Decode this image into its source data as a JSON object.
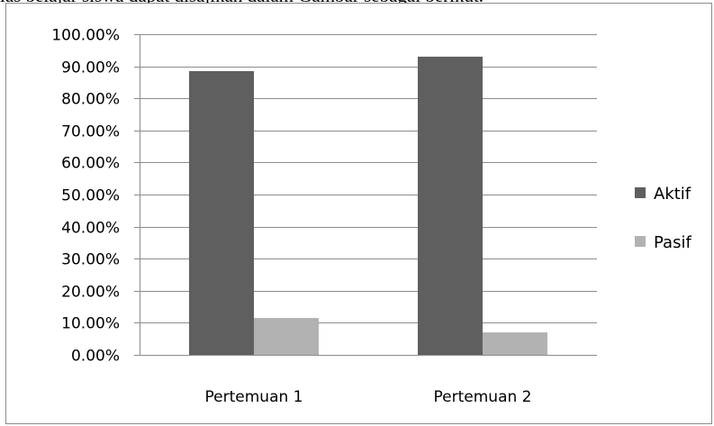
{
  "caption_fragment": "las belajar siswa dapat disajikan dalam Gambar sebagai berikut.",
  "chart_data": {
    "type": "bar",
    "categories": [
      "Pertemuan 1",
      "Pertemuan 2"
    ],
    "series": [
      {
        "name": "Aktif",
        "values": [
          88.5,
          93.0
        ],
        "color": "#5f5f5f"
      },
      {
        "name": "Pasif",
        "values": [
          11.5,
          7.0
        ],
        "color": "#b2b2b2"
      }
    ],
    "ylim": [
      0,
      100
    ],
    "yticks": [
      "0.00%",
      "10.00%",
      "20.00%",
      "30.00%",
      "40.00%",
      "50.00%",
      "60.00%",
      "70.00%",
      "80.00%",
      "90.00%",
      "100.00%"
    ],
    "grid": true,
    "legend_position": "right",
    "colors": {
      "gridline": "#8c8c8c",
      "axis": "#8c8c8c"
    }
  }
}
